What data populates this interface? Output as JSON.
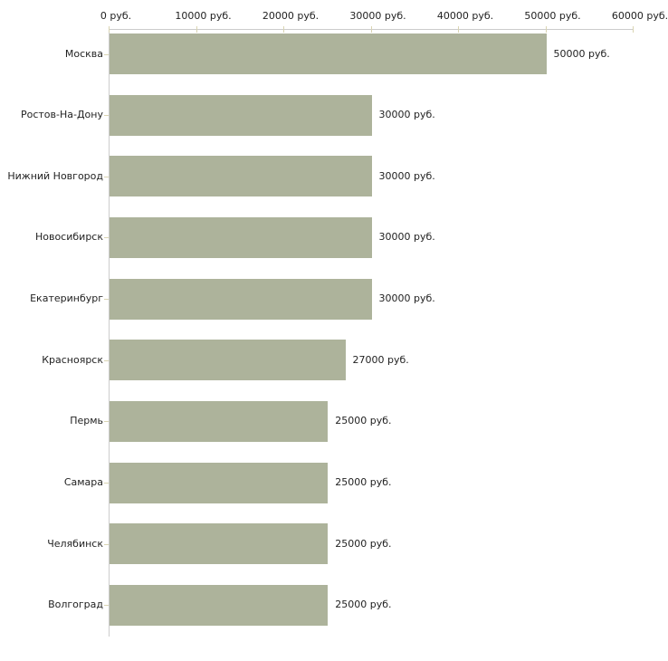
{
  "chart_data": {
    "type": "bar",
    "orientation": "horizontal",
    "title": "",
    "xlabel": "",
    "ylabel": "",
    "categories": [
      "Москва",
      "Ростов-На-Дону",
      "Нижний Новгород",
      "Новосибирск",
      "Екатеринбург",
      "Красноярск",
      "Пермь",
      "Самара",
      "Челябинск",
      "Волгоград"
    ],
    "values": [
      50000,
      30000,
      30000,
      30000,
      30000,
      27000,
      25000,
      25000,
      25000,
      25000
    ],
    "value_labels": [
      "50000 руб.",
      "30000 руб.",
      "30000 руб.",
      "30000 руб.",
      "30000 руб.",
      "27000 руб.",
      "25000 руб.",
      "25000 руб.",
      "25000 руб.",
      "25000 руб."
    ],
    "x_tick_values": [
      0,
      10000,
      20000,
      30000,
      40000,
      50000,
      60000
    ],
    "x_tick_labels": [
      "0 руб.",
      "10000 руб.",
      "20000 руб.",
      "30000 руб.",
      "40000 руб.",
      "50000 руб.",
      "60000 руб."
    ],
    "xlim": [
      0,
      60000
    ],
    "unit_suffix": " руб.",
    "grid": false,
    "legend": false,
    "colors": {
      "bar": "#adb39b",
      "axis": "#cccccc",
      "tick": "#d9d4b2",
      "text": "#222222",
      "background": "#ffffff"
    }
  }
}
